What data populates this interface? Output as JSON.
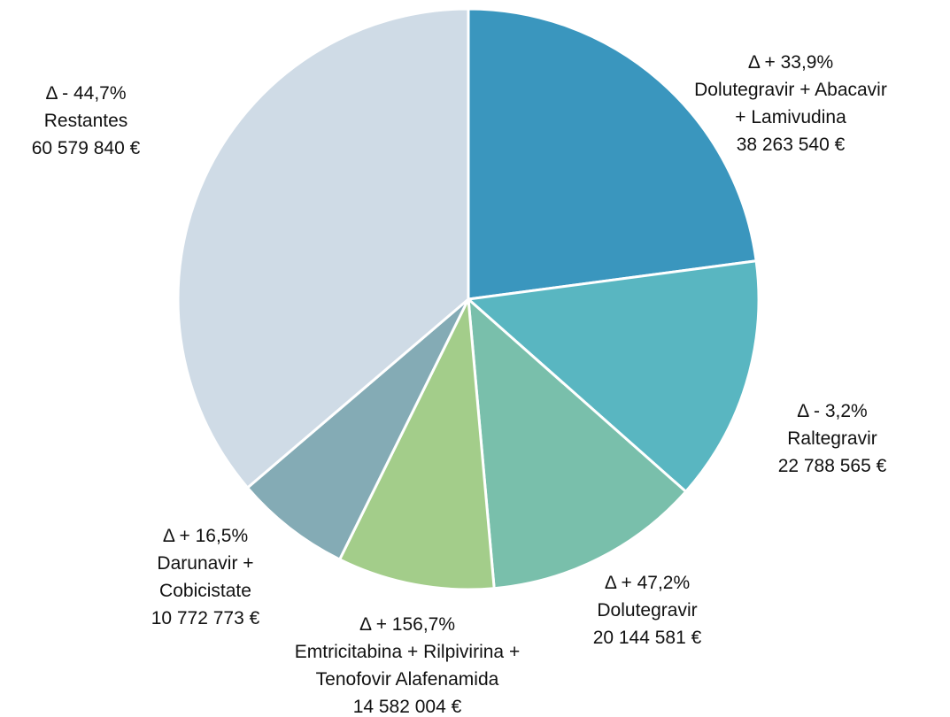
{
  "chart_data": {
    "type": "pie",
    "categories": [
      "Dolutegravir + Abacavir + Lamivudina",
      "Raltegravir",
      "Dolutegravir",
      "Emtricitabina + Rilpivirina + Tenofovir Alafenamida",
      "Darunavir + Cobicistate",
      "Restantes"
    ],
    "values": [
      38263540,
      22788565,
      20144581,
      14582004,
      10772773,
      60579840
    ],
    "value_labels": [
      "38 263 540 €",
      "22 788 565 €",
      "20 144 581 €",
      "14 582 004 €",
      "10 772 773 €",
      "60 579 840 €"
    ],
    "annotations": [
      "Δ + 33,9%",
      "Δ - 3,2%",
      "Δ + 47,2%",
      "Δ + 156,7%",
      "Δ + 16,5%",
      "Δ - 44,7%"
    ],
    "colors": [
      "#3a96be",
      "#59b6c1",
      "#79bfab",
      "#a3cd8a",
      "#84abb5",
      "#cfdbe6"
    ]
  }
}
